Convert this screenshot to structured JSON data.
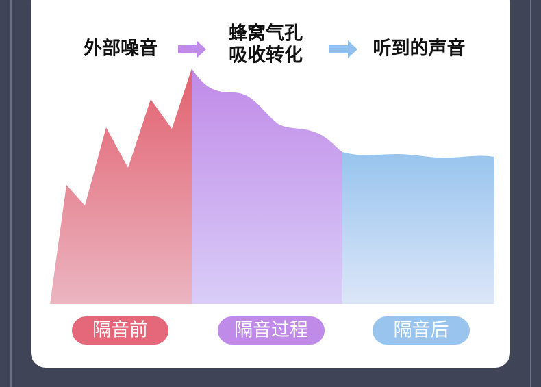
{
  "steps": [
    {
      "lines": [
        "外部噪音"
      ]
    },
    {
      "lines": [
        "蜂窝气孔",
        "吸收转化"
      ]
    },
    {
      "lines": [
        "听到的声音"
      ]
    }
  ],
  "labels": [
    "隔音前",
    "隔音过程",
    "隔音后"
  ]
}
